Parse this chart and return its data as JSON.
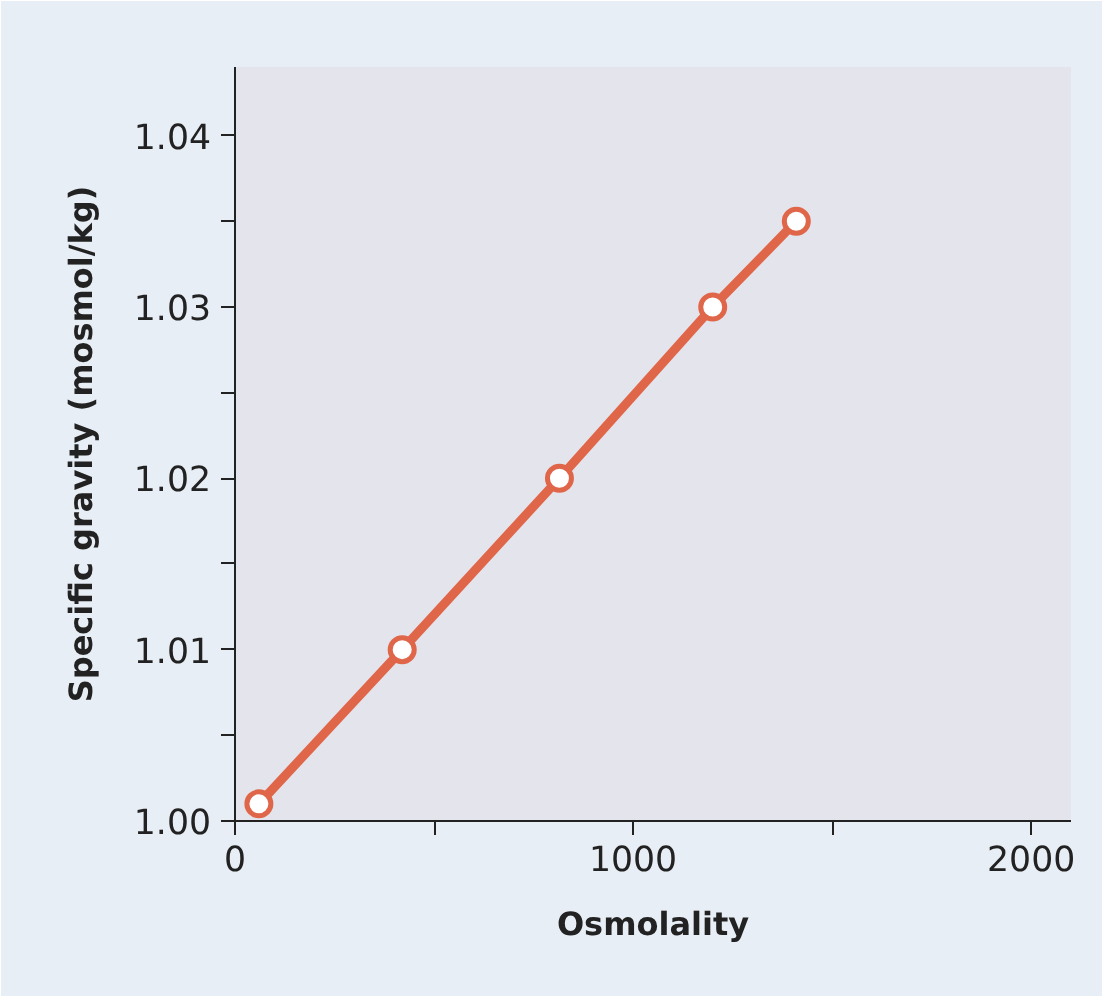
{
  "chart_data": {
    "type": "line",
    "xlabel": "Osmolality",
    "ylabel": "Specific gravity (mosmol/kg)",
    "x": [
      60,
      420,
      815,
      1200,
      1410
    ],
    "series": [
      {
        "color": "#e0664a",
        "values": [
          1.001,
          1.01,
          1.02,
          1.03,
          1.035
        ]
      }
    ],
    "xlim": [
      0,
      2100
    ],
    "ylim": [
      1.0,
      1.044
    ],
    "xticks": [
      0,
      {
        "value": 500,
        "label": null
      },
      1000,
      {
        "value": 1500,
        "label": null
      },
      2000
    ],
    "yticks": [
      {
        "value": 1.0,
        "label": "1.00"
      },
      {
        "value": 1.005,
        "label": null
      },
      {
        "value": 1.01,
        "label": "1.01"
      },
      {
        "value": 1.015,
        "label": null
      },
      {
        "value": 1.02,
        "label": "1.02"
      },
      {
        "value": 1.025,
        "label": null
      },
      {
        "value": 1.03,
        "label": "1.03"
      },
      {
        "value": 1.035,
        "label": null
      },
      {
        "value": 1.04,
        "label": "1.04"
      }
    ],
    "marker": "circle",
    "line_style": "solid",
    "grid": false
  }
}
